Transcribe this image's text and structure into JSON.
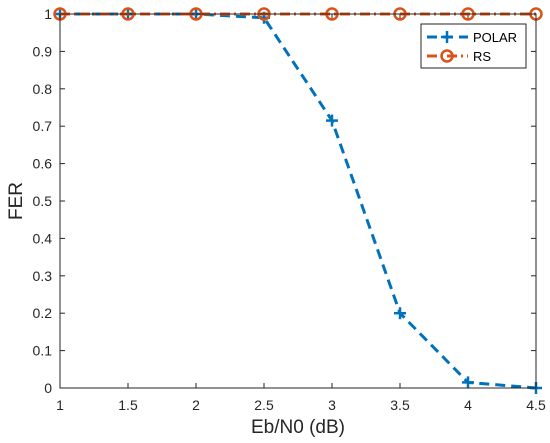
{
  "chart_data": {
    "type": "line",
    "title": "",
    "xlabel": "Eb/N0 (dB)",
    "ylabel": "FER",
    "x": [
      1,
      1.5,
      2,
      2.5,
      3,
      3.5,
      4,
      4.5
    ],
    "xlim": [
      1,
      4.5
    ],
    "ylim": [
      0,
      1
    ],
    "xticks": [
      1,
      1.5,
      2,
      2.5,
      3,
      3.5,
      4,
      4.5
    ],
    "xtick_labels": [
      "1",
      "1.5",
      "2",
      "2.5",
      "3",
      "3.5",
      "4",
      "4.5"
    ],
    "yticks": [
      0,
      0.1,
      0.2,
      0.3,
      0.4,
      0.5,
      0.6,
      0.7,
      0.8,
      0.9,
      1
    ],
    "ytick_labels": [
      "0",
      "0.1",
      "0.2",
      "0.3",
      "0.4",
      "0.5",
      "0.6",
      "0.7",
      "0.8",
      "0.9",
      "1"
    ],
    "grid": false,
    "legend_position": "top-right",
    "series": [
      {
        "name": "POLAR",
        "values": [
          1,
          1,
          1,
          0.99,
          0.715,
          0.2,
          0.015,
          0
        ],
        "color": "#0072BD",
        "line_style": "dashed",
        "marker": "plus"
      },
      {
        "name": "RS",
        "values": [
          1,
          1,
          1,
          1,
          1,
          1,
          1,
          1
        ],
        "color": "#D95319",
        "line_style": "dash-dot",
        "marker": "circle"
      }
    ]
  }
}
